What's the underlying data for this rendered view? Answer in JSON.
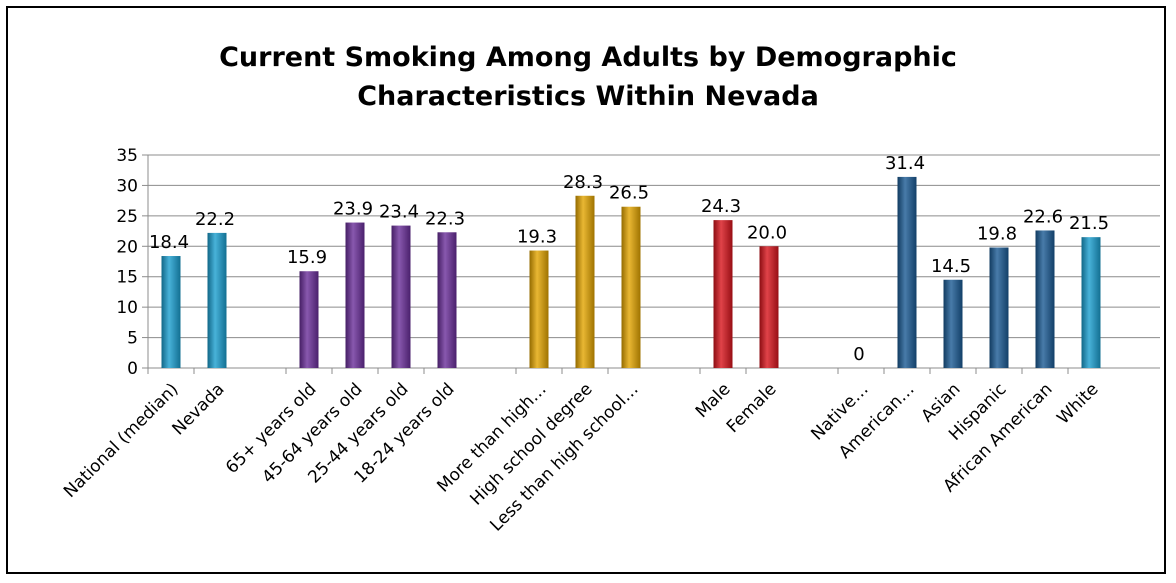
{
  "chart_data": {
    "type": "bar",
    "title": "Current Smoking Among Adults by Demographic Characteristics Within Nevada",
    "title_lines": [
      "Current Smoking Among Adults by Demographic",
      "Characteristics Within Nevada"
    ],
    "xlabel": "",
    "ylabel": "",
    "ylim": [
      0,
      35
    ],
    "yticks": [
      0,
      5,
      10,
      15,
      20,
      25,
      30,
      35
    ],
    "grid": true,
    "legend": "none",
    "groups": [
      {
        "color": "#1a9fd0",
        "bars": [
          {
            "label": "National (median)",
            "value": 18.4,
            "value_label": "18.4"
          },
          {
            "label": "Nevada",
            "value": 22.2,
            "value_label": "22.2"
          }
        ]
      },
      {
        "color": "#6a2e9a",
        "bars": [
          {
            "label": "65+ years old",
            "value": 15.9,
            "value_label": "15.9"
          },
          {
            "label": "45-64 years old",
            "value": 23.9,
            "value_label": "23.9"
          },
          {
            "label": "25-44 years old",
            "value": 23.4,
            "value_label": "23.4"
          },
          {
            "label": "18-24 years old",
            "value": 22.3,
            "value_label": "22.3"
          }
        ]
      },
      {
        "color": "#e3a500",
        "bars": [
          {
            "label": "More than high…",
            "value": 19.3,
            "value_label": "19.3"
          },
          {
            "label": "High school degree",
            "value": 28.3,
            "value_label": "28.3"
          },
          {
            "label": "Less than high school…",
            "value": 26.5,
            "value_label": "26.5"
          }
        ]
      },
      {
        "color": "#d8141c",
        "bars": [
          {
            "label": "Male",
            "value": 24.3,
            "value_label": "24.3"
          },
          {
            "label": "Female",
            "value": 20.0,
            "value_label": "20.0"
          }
        ]
      },
      {
        "color": "#1a5a94",
        "bars": [
          {
            "label": "Native…",
            "value": 0,
            "value_label": "0"
          },
          {
            "label": "American…",
            "value": 31.4,
            "value_label": "31.4"
          },
          {
            "label": "Asian",
            "value": 14.5,
            "value_label": "14.5"
          },
          {
            "label": "Hispanic",
            "value": 19.8,
            "value_label": "19.8"
          },
          {
            "label": "African American",
            "value": 22.6,
            "value_label": "22.6"
          },
          {
            "label": "White",
            "value": 21.5,
            "value_label": "21.5",
            "color": "#1a9fd0"
          }
        ]
      }
    ]
  }
}
